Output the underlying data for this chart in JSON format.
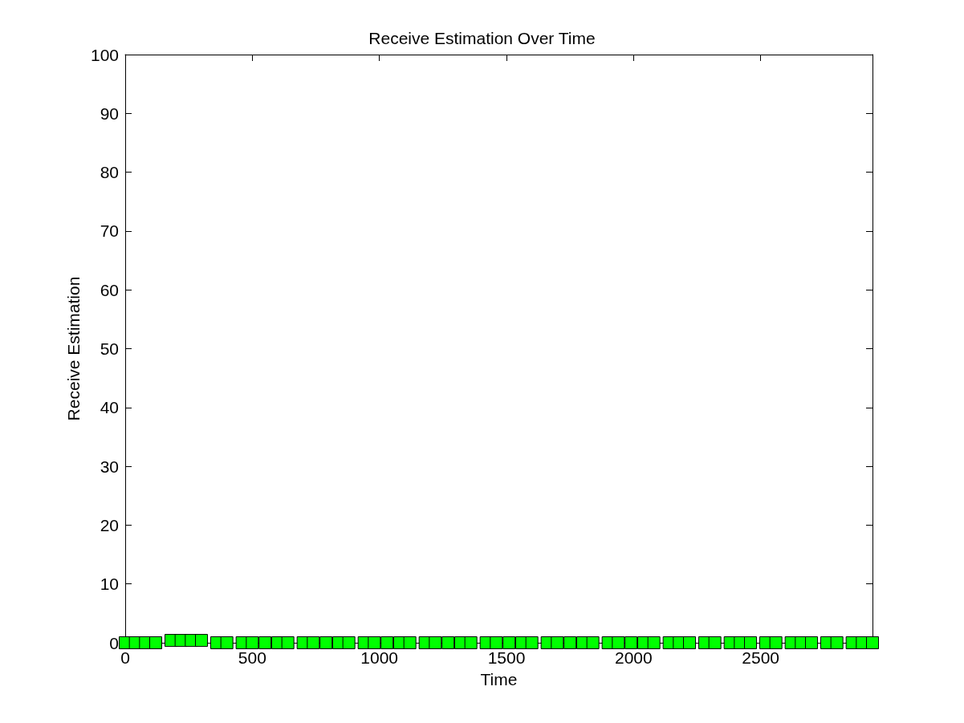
{
  "chart_data": {
    "type": "scatter",
    "title": "Receive Estimation Over Time",
    "xlabel": "Time",
    "ylabel": "Receive Estimation",
    "x": [
      0,
      40,
      80,
      120,
      180,
      220,
      260,
      300,
      360,
      400,
      460,
      500,
      550,
      600,
      640,
      700,
      740,
      790,
      840,
      880,
      940,
      980,
      1030,
      1080,
      1120,
      1180,
      1220,
      1270,
      1320,
      1360,
      1420,
      1460,
      1510,
      1560,
      1600,
      1660,
      1700,
      1750,
      1800,
      1840,
      1900,
      1940,
      1990,
      2040,
      2080,
      2140,
      2180,
      2220,
      2280,
      2320,
      2380,
      2420,
      2460,
      2520,
      2560,
      2620,
      2660,
      2700,
      2760,
      2800,
      2860,
      2900,
      2940
    ],
    "values": [
      0,
      0,
      0,
      0,
      0.4,
      0.4,
      0.4,
      0.4,
      0,
      0,
      0,
      0,
      0,
      0,
      0,
      0,
      0,
      0,
      0,
      0,
      0,
      0,
      0,
      0,
      0,
      0,
      0,
      0,
      0,
      0,
      0,
      0,
      0,
      0,
      0,
      0,
      0,
      0,
      0,
      0,
      0,
      0,
      0,
      0,
      0,
      0,
      0,
      0,
      0,
      0,
      0,
      0,
      0,
      0,
      0,
      0,
      0,
      0,
      0,
      0,
      0,
      0,
      0
    ],
    "color": "#00ff00",
    "marker": "square",
    "xlim": [
      0,
      2940
    ],
    "xticks": [
      0,
      500,
      1000,
      1500,
      2000,
      2500
    ],
    "ylim": [
      0,
      100
    ],
    "yticks": [
      0,
      10,
      20,
      30,
      40,
      50,
      60,
      70,
      80,
      90,
      100
    ]
  }
}
